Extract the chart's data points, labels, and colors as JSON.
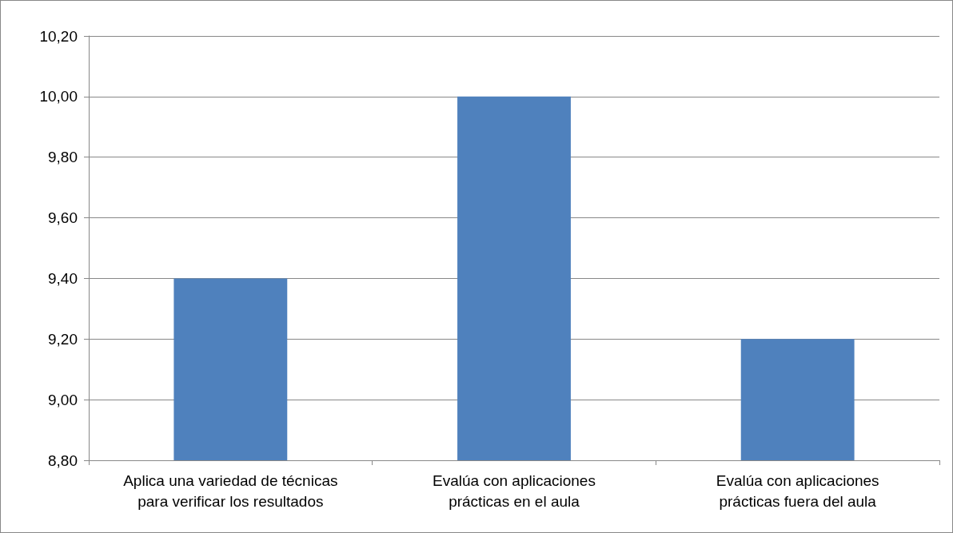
{
  "chart_data": {
    "type": "bar",
    "categories": [
      "Aplica una variedad de técnicas\npara verificar los resultados",
      "Evalúa con aplicaciones\nprácticas en el aula",
      "Evalúa con aplicaciones\nprácticas fuera del aula"
    ],
    "values": [
      9.4,
      10.0,
      9.2
    ],
    "color": "#4f81bd",
    "ylim": [
      8.8,
      10.2
    ],
    "yticks": [
      {
        "value": 8.8,
        "label": "8,80"
      },
      {
        "value": 9.0,
        "label": "9,00"
      },
      {
        "value": 9.2,
        "label": "9,20"
      },
      {
        "value": 9.4,
        "label": "9,40"
      },
      {
        "value": 9.6,
        "label": "9,60"
      },
      {
        "value": 9.8,
        "label": "9,80"
      },
      {
        "value": 10.0,
        "label": "10,00"
      },
      {
        "value": 10.2,
        "label": "10,20"
      }
    ],
    "grid": "y"
  }
}
